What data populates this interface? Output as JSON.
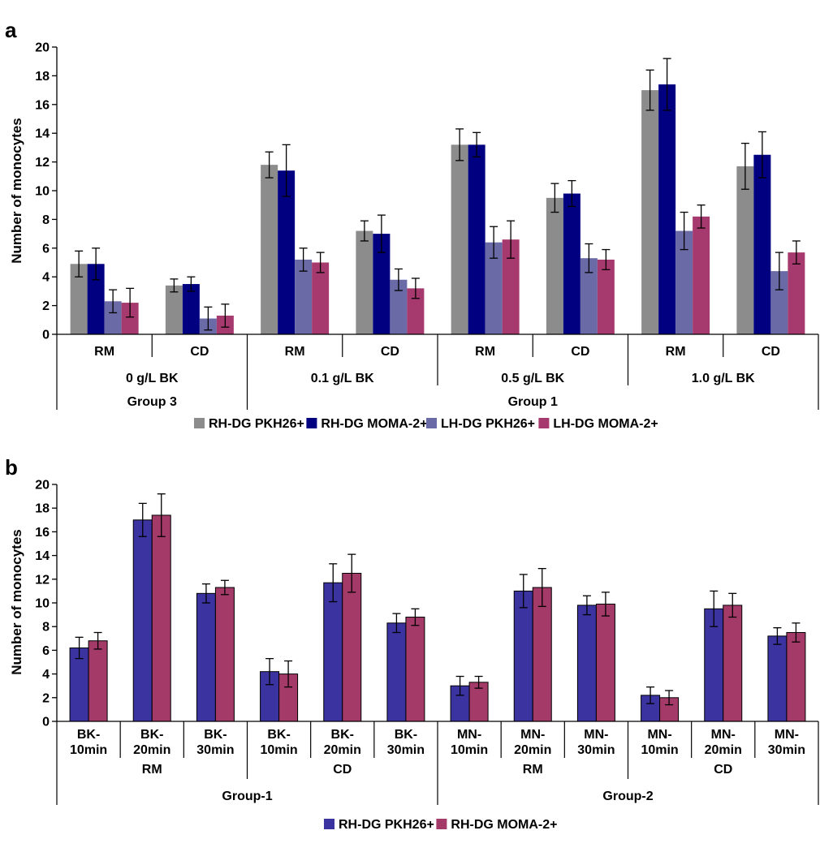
{
  "panels": {
    "a": {
      "letter": "a",
      "ylabel": "Number of monocytes",
      "ylim": [
        0,
        20
      ],
      "yticks": [
        "0",
        "2",
        "4",
        "6",
        "8",
        "10",
        "12",
        "14",
        "16",
        "18",
        "20"
      ]
    },
    "b": {
      "letter": "b",
      "ylabel": "Number of monocytes",
      "ylim": [
        0,
        20
      ],
      "yticks": [
        "0",
        "2",
        "4",
        "6",
        "8",
        "10",
        "12",
        "14",
        "16",
        "18",
        "20"
      ]
    }
  },
  "chart_data": [
    {
      "type": "bar",
      "title": "a",
      "ylabel": "Number of monocytes",
      "ylim": [
        0,
        20
      ],
      "categories": [
        "RM",
        "CD",
        "RM",
        "CD",
        "RM",
        "CD",
        "RM",
        "CD"
      ],
      "level2": [
        {
          "label": "0 g/L BK",
          "span": 2
        },
        {
          "label": "0.1 g/L BK",
          "span": 2
        },
        {
          "label": "0.5 g/L BK",
          "span": 2
        },
        {
          "label": "1.0 g/L BK",
          "span": 2
        }
      ],
      "level3": [
        {
          "label": "Group 3",
          "span": 2
        },
        {
          "label": "Group 1",
          "span": 6
        }
      ],
      "series": [
        {
          "name": "RH-DG PKH26+",
          "color": "#8c8c8c",
          "values": [
            4.9,
            3.4,
            11.8,
            7.2,
            13.2,
            9.5,
            17.0,
            11.7
          ],
          "errors": [
            0.9,
            0.45,
            0.9,
            0.7,
            1.1,
            1.0,
            1.4,
            1.6
          ]
        },
        {
          "name": "RH-DG MOMA-2+",
          "color": "#000080",
          "values": [
            4.9,
            3.5,
            11.4,
            7.0,
            13.2,
            9.8,
            17.4,
            12.5
          ],
          "errors": [
            1.1,
            0.5,
            1.8,
            1.3,
            0.85,
            0.9,
            1.8,
            1.6
          ]
        },
        {
          "name": "LH-DG PKH26+",
          "color": "#6a6aa6",
          "values": [
            2.3,
            1.1,
            5.2,
            3.8,
            6.4,
            5.3,
            7.2,
            4.4
          ],
          "errors": [
            0.8,
            0.8,
            0.8,
            0.75,
            1.1,
            1.0,
            1.3,
            1.3
          ]
        },
        {
          "name": "LH-DG MOMA-2+",
          "color": "#a63a6e",
          "values": [
            2.2,
            1.3,
            5.0,
            3.2,
            6.6,
            5.2,
            8.2,
            5.7
          ],
          "errors": [
            1.0,
            0.8,
            0.7,
            0.7,
            1.3,
            0.7,
            0.8,
            0.8
          ]
        }
      ]
    },
    {
      "type": "bar",
      "title": "b",
      "ylabel": "Number of monocytes",
      "ylim": [
        0,
        20
      ],
      "categories": [
        [
          "BK-",
          "10min"
        ],
        [
          "BK-",
          "20min"
        ],
        [
          "BK-",
          "30min"
        ],
        [
          "BK-",
          "10min"
        ],
        [
          "BK-",
          "20min"
        ],
        [
          "BK-",
          "30min"
        ],
        [
          "MN-",
          "10min"
        ],
        [
          "MN-",
          "20min"
        ],
        [
          "MN-",
          "30min"
        ],
        [
          "MN-",
          "10min"
        ],
        [
          "MN-",
          "20min"
        ],
        [
          "MN-",
          "30min"
        ]
      ],
      "level2": [
        {
          "label": "RM",
          "span": 3
        },
        {
          "label": "CD",
          "span": 3
        },
        {
          "label": "RM",
          "span": 3
        },
        {
          "label": "CD",
          "span": 3
        }
      ],
      "level3": [
        {
          "label": "Group-1",
          "span": 6
        },
        {
          "label": "Group-2",
          "span": 6
        }
      ],
      "series": [
        {
          "name": "RH-DG PKH26+",
          "color": "#3a33a0",
          "values": [
            6.2,
            17.0,
            10.8,
            4.2,
            11.7,
            8.3,
            3.0,
            11.0,
            9.8,
            2.2,
            9.5,
            7.2
          ],
          "errors": [
            0.9,
            1.4,
            0.8,
            1.1,
            1.6,
            0.8,
            0.8,
            1.4,
            0.8,
            0.7,
            1.5,
            0.7
          ]
        },
        {
          "name": "RH-DG MOMA-2+",
          "color": "#a33a68",
          "values": [
            6.8,
            17.4,
            11.3,
            4.0,
            12.5,
            8.8,
            3.3,
            11.3,
            9.9,
            2.0,
            9.8,
            7.5
          ],
          "errors": [
            0.7,
            1.8,
            0.6,
            1.1,
            1.6,
            0.7,
            0.5,
            1.6,
            1.0,
            0.6,
            1.0,
            0.8
          ]
        }
      ]
    }
  ]
}
